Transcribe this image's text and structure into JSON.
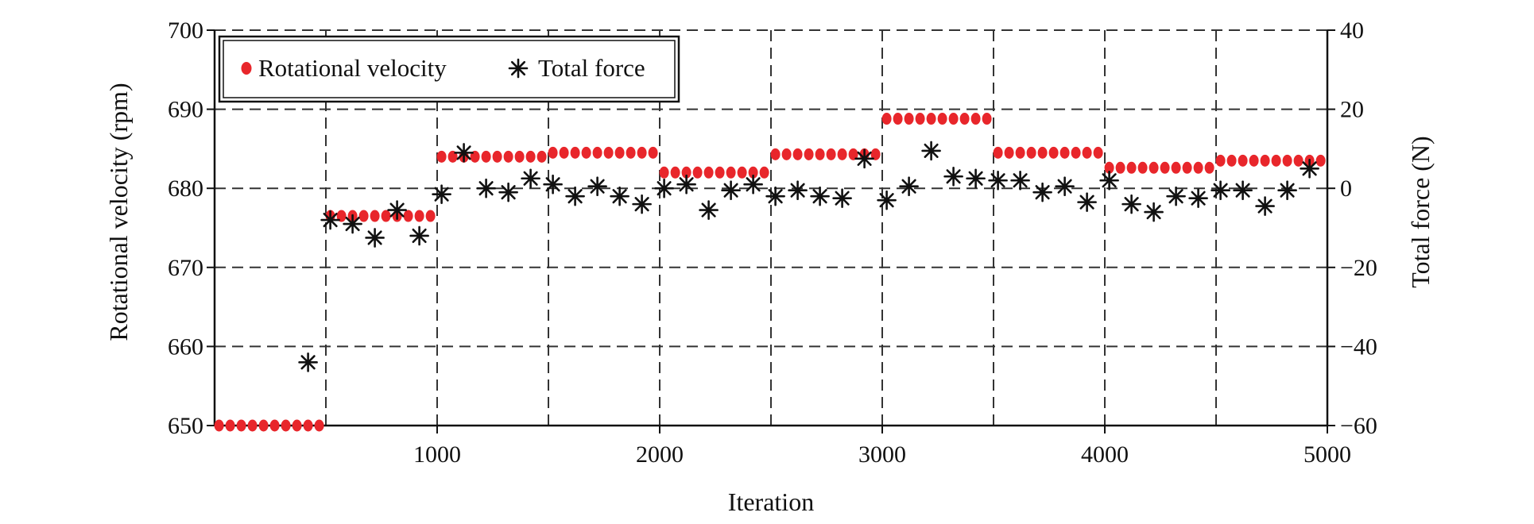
{
  "chart_data": {
    "type": "scatter",
    "xlabel": "Iteration",
    "ylabel": "Rotational velocity (rpm)",
    "y2label": "Total force (N)",
    "xlim": [
      0,
      5000
    ],
    "ylim": [
      650,
      700
    ],
    "y2lim": [
      -60,
      40
    ],
    "x_ticks": [
      1000,
      2000,
      3000,
      4000,
      5000
    ],
    "y_ticks": [
      650,
      660,
      670,
      680,
      690,
      700
    ],
    "y2_ticks": [
      -60,
      -40,
      -20,
      0,
      20,
      40
    ],
    "y2_tick_labels": [
      "−60",
      "−40",
      "−20",
      "0",
      "20",
      "40"
    ],
    "grid": true,
    "legend_position": "top-left",
    "colors": {
      "rotational_velocity": "#e8262b",
      "total_force": "#111111"
    },
    "series": [
      {
        "name": "Rotational velocity",
        "axis": "left",
        "marker": "dot",
        "x": [
          20,
          70,
          120,
          170,
          220,
          270,
          320,
          370,
          420,
          470,
          520,
          570,
          620,
          670,
          720,
          770,
          820,
          870,
          920,
          970,
          1020,
          1070,
          1120,
          1170,
          1220,
          1270,
          1320,
          1370,
          1420,
          1470,
          1520,
          1570,
          1620,
          1670,
          1720,
          1770,
          1820,
          1870,
          1920,
          1970,
          2020,
          2070,
          2120,
          2170,
          2220,
          2270,
          2320,
          2370,
          2420,
          2470,
          2520,
          2570,
          2620,
          2670,
          2720,
          2770,
          2820,
          2870,
          2920,
          2970,
          3020,
          3070,
          3120,
          3170,
          3220,
          3270,
          3320,
          3370,
          3420,
          3470,
          3520,
          3570,
          3620,
          3670,
          3720,
          3770,
          3820,
          3870,
          3920,
          3970,
          4020,
          4070,
          4120,
          4170,
          4220,
          4270,
          4320,
          4370,
          4420,
          4470,
          4520,
          4570,
          4620,
          4670,
          4720,
          4770,
          4820,
          4870,
          4920,
          4970
        ],
        "y": [
          650,
          650,
          650,
          650,
          650,
          650,
          650,
          650,
          650,
          650,
          676.5,
          676.5,
          676.5,
          676.5,
          676.5,
          676.5,
          676.5,
          676.5,
          676.5,
          676.5,
          684,
          684,
          684,
          684,
          684,
          684,
          684,
          684,
          684,
          684,
          684.5,
          684.5,
          684.5,
          684.5,
          684.5,
          684.5,
          684.5,
          684.5,
          684.5,
          684.5,
          682,
          682,
          682,
          682,
          682,
          682,
          682,
          682,
          682,
          682,
          684.3,
          684.3,
          684.3,
          684.3,
          684.3,
          684.3,
          684.3,
          684.3,
          684.3,
          684.3,
          688.8,
          688.8,
          688.8,
          688.8,
          688.8,
          688.8,
          688.8,
          688.8,
          688.8,
          688.8,
          684.5,
          684.5,
          684.5,
          684.5,
          684.5,
          684.5,
          684.5,
          684.5,
          684.5,
          684.5,
          682.6,
          682.6,
          682.6,
          682.6,
          682.6,
          682.6,
          682.6,
          682.6,
          682.6,
          682.6,
          683.5,
          683.5,
          683.5,
          683.5,
          683.5,
          683.5,
          683.5,
          683.5,
          683.5,
          683.5
        ]
      },
      {
        "name": "Total force",
        "axis": "right",
        "marker": "asterisk",
        "x": [
          420,
          520,
          620,
          720,
          820,
          920,
          1020,
          1120,
          1220,
          1320,
          1420,
          1520,
          1620,
          1720,
          1820,
          1920,
          2020,
          2120,
          2220,
          2320,
          2420,
          2520,
          2620,
          2720,
          2820,
          2920,
          3020,
          3120,
          3220,
          3320,
          3420,
          3520,
          3620,
          3720,
          3820,
          3920,
          4020,
          4120,
          4220,
          4320,
          4420,
          4520,
          4620,
          4720,
          4820,
          4920
        ],
        "y": [
          -44,
          -8,
          -9,
          -12.5,
          -5.5,
          -12,
          -1.5,
          9,
          0,
          -1,
          2.5,
          1,
          -2,
          0.5,
          -2,
          -4,
          0,
          1,
          -5.5,
          -0.5,
          1,
          -2,
          -0.5,
          -2,
          -2.5,
          7.5,
          -3,
          0.5,
          9.5,
          3,
          2.5,
          2,
          2,
          -1,
          0.5,
          -3.5,
          2,
          -4,
          -6,
          -2,
          -2.5,
          -0.5,
          -0.5,
          -4.5,
          -0.5,
          5
        ]
      }
    ]
  }
}
